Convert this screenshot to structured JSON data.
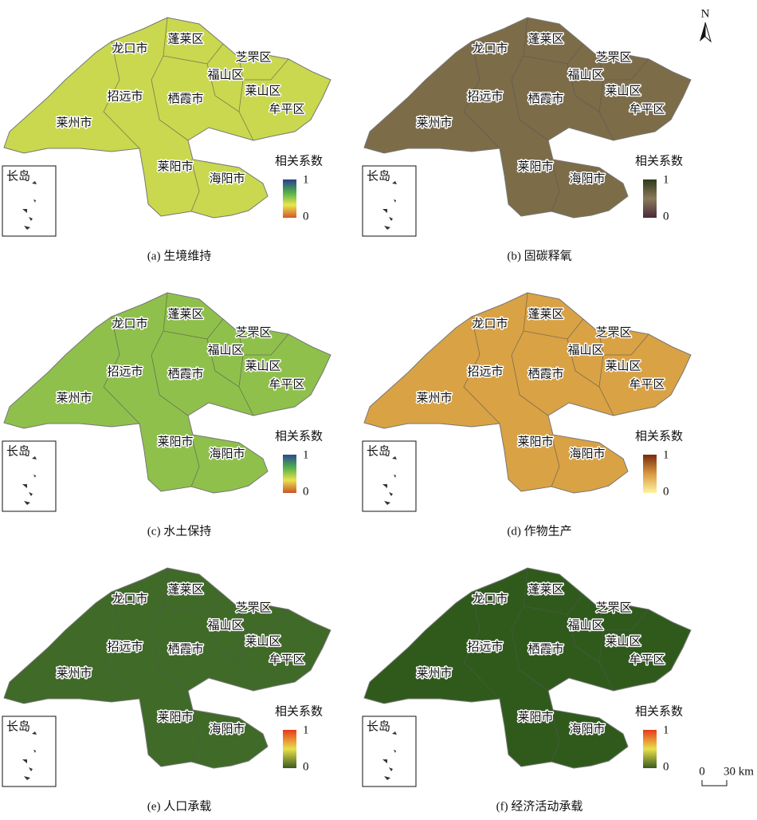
{
  "panels": [
    {
      "caption": "(a) 生境维持",
      "base_color": "#c9d84e",
      "legend": {
        "title": "相关系数",
        "max": 1,
        "min": 0,
        "colors": [
          "#d4582a",
          "#e9e64c",
          "#4fae4a",
          "#2b3f8f"
        ]
      },
      "inset_label": "长岛",
      "districts": [
        "龙口市",
        "蓬莱区",
        "芝罘区",
        "福山区",
        "莱山区",
        "牟平区",
        "招远市",
        "栖霞市",
        "莱州市",
        "莱阳市",
        "海阳市"
      ]
    },
    {
      "caption": "(b) 固碳释氧",
      "base_color": "#7d6c48",
      "legend": {
        "title": "相关系数",
        "max": 1,
        "min": 0,
        "colors": [
          "#4a2a3a",
          "#8a7a5a",
          "#2f3a1a"
        ]
      },
      "inset_label": "长岛",
      "districts": [
        "龙口市",
        "蓬莱区",
        "芝罘区",
        "福山区",
        "莱山区",
        "牟平区",
        "招远市",
        "栖霞市",
        "莱州市",
        "莱阳市",
        "海阳市"
      ]
    },
    {
      "caption": "(c) 水土保持",
      "base_color": "#8fc04c",
      "legend": {
        "title": "相关系数",
        "max": 1,
        "min": 0,
        "colors": [
          "#c8552a",
          "#e9e24c",
          "#52ae4c",
          "#2a4a8f"
        ]
      },
      "inset_label": "长岛",
      "districts": [
        "龙口市",
        "蓬莱区",
        "芝罘区",
        "福山区",
        "莱山区",
        "牟平区",
        "招远市",
        "栖霞市",
        "莱州市",
        "莱阳市",
        "海阳市"
      ]
    },
    {
      "caption": "(d) 作物生产",
      "base_color": "#d9a245",
      "legend": {
        "title": "相关系数",
        "max": 1,
        "min": 0,
        "colors": [
          "#fff3a0",
          "#d99a40",
          "#7a2a0a"
        ]
      },
      "inset_label": "长岛",
      "districts": [
        "龙口市",
        "蓬莱区",
        "芝罘区",
        "福山区",
        "莱山区",
        "牟平区",
        "招远市",
        "栖霞市",
        "莱州市",
        "莱阳市",
        "海阳市"
      ]
    },
    {
      "caption": "(e) 人口承载",
      "base_color": "#3f6a28",
      "legend": {
        "title": "相关系数",
        "max": 1,
        "min": 0,
        "colors": [
          "#3a5a1f",
          "#e8e04a",
          "#e83a1a"
        ]
      },
      "inset_label": "长岛",
      "districts": [
        "龙口市",
        "蓬莱区",
        "芝罘区",
        "福山区",
        "莱山区",
        "牟平区",
        "招远市",
        "栖霞市",
        "莱州市",
        "莱阳市",
        "海阳市"
      ]
    },
    {
      "caption": "(f) 经济活动承载",
      "base_color": "#2f5a1c",
      "legend": {
        "title": "相关系数",
        "max": 1,
        "min": 0,
        "colors": [
          "#3a5a1f",
          "#e8e04a",
          "#e83a1a"
        ]
      },
      "inset_label": "长岛",
      "districts": [
        "龙口市",
        "蓬莱区",
        "芝罘区",
        "福山区",
        "莱山区",
        "牟平区",
        "招远市",
        "栖霞市",
        "莱州市",
        "莱阳市",
        "海阳市"
      ]
    }
  ],
  "north_label": "N",
  "scale": {
    "start": 0,
    "end": "30 km"
  }
}
